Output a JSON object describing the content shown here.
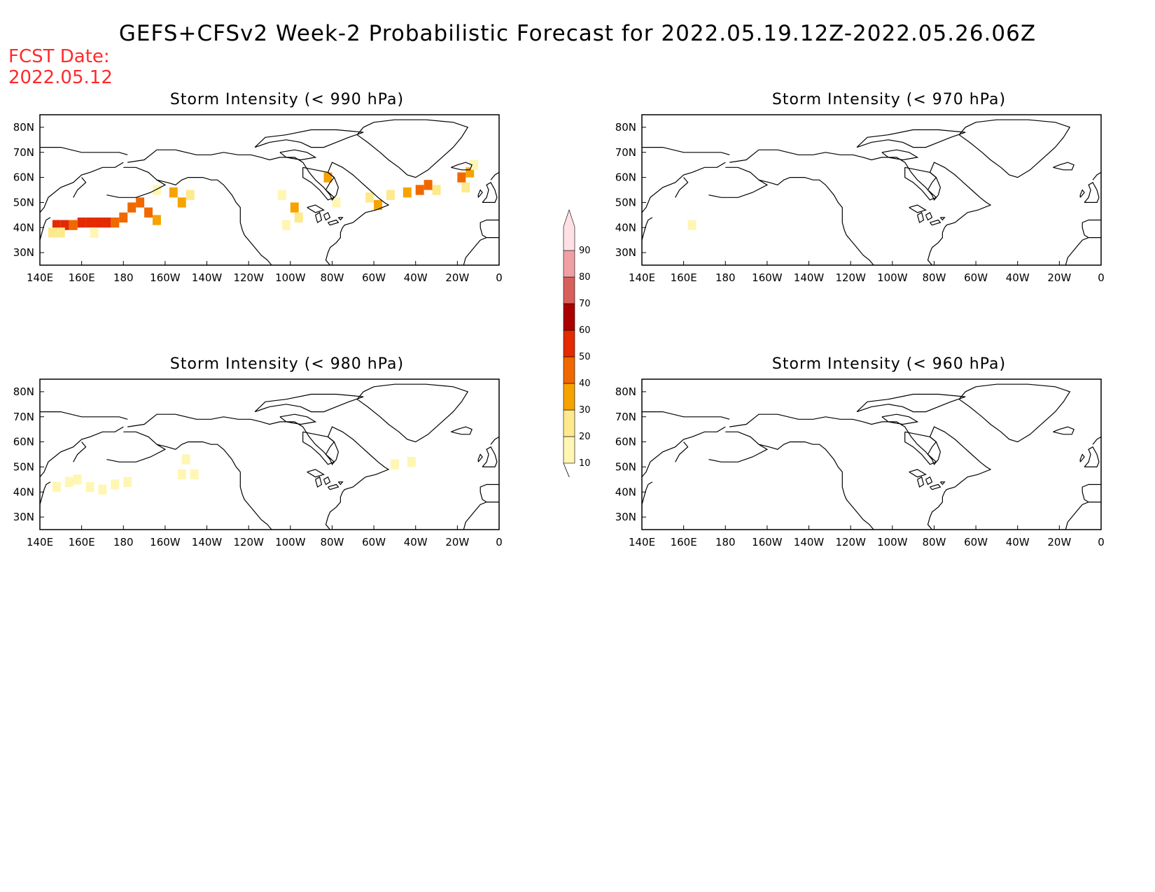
{
  "title": "GEFS+CFSv2 Week-2 Probabilistic Forecast for 2022.05.19.12Z-2022.05.26.06Z",
  "fcst_date": {
    "line1": "FCST Date:",
    "line2": "2022.05.12"
  },
  "axis": {
    "lon_labels": [
      "140E",
      "160E",
      "180",
      "160W",
      "140W",
      "120W",
      "100W",
      "80W",
      "60W",
      "40W",
      "20W",
      "0"
    ],
    "lat_labels": [
      "80N",
      "70N",
      "60N",
      "50N",
      "40N",
      "30N"
    ],
    "lon_range": [
      140,
      360
    ],
    "lat_range": [
      25,
      85
    ]
  },
  "panels": [
    {
      "id": "p1",
      "title": "Storm Intensity (< 990 hPa)",
      "cells": [
        {
          "lon": 160,
          "lat": 42,
          "v": 55
        },
        {
          "lon": 164,
          "lat": 42,
          "v": 55
        },
        {
          "lon": 168,
          "lat": 42,
          "v": 50
        },
        {
          "lon": 172,
          "lat": 42,
          "v": 50
        },
        {
          "lon": 176,
          "lat": 42,
          "v": 45
        },
        {
          "lon": 148,
          "lat": 41,
          "v": 50
        },
        {
          "lon": 152,
          "lat": 41,
          "v": 52
        },
        {
          "lon": 156,
          "lat": 41,
          "v": 45
        },
        {
          "lon": 180,
          "lat": 44,
          "v": 40
        },
        {
          "lon": 184,
          "lat": 48,
          "v": 42
        },
        {
          "lon": 188,
          "lat": 50,
          "v": 45
        },
        {
          "lon": 192,
          "lat": 46,
          "v": 40
        },
        {
          "lon": 196,
          "lat": 43,
          "v": 32
        },
        {
          "lon": 146,
          "lat": 38,
          "v": 25
        },
        {
          "lon": 150,
          "lat": 38,
          "v": 25
        },
        {
          "lon": 166,
          "lat": 38,
          "v": 15
        },
        {
          "lon": 196,
          "lat": 55,
          "v": 18
        },
        {
          "lon": 204,
          "lat": 54,
          "v": 35
        },
        {
          "lon": 208,
          "lat": 50,
          "v": 30
        },
        {
          "lon": 212,
          "lat": 53,
          "v": 25
        },
        {
          "lon": 256,
          "lat": 53,
          "v": 15
        },
        {
          "lon": 262,
          "lat": 48,
          "v": 30
        },
        {
          "lon": 264,
          "lat": 44,
          "v": 20
        },
        {
          "lon": 258,
          "lat": 41,
          "v": 15
        },
        {
          "lon": 278,
          "lat": 60,
          "v": 35
        },
        {
          "lon": 282,
          "lat": 50,
          "v": 15
        },
        {
          "lon": 298,
          "lat": 52,
          "v": 25
        },
        {
          "lon": 302,
          "lat": 49,
          "v": 32
        },
        {
          "lon": 308,
          "lat": 53,
          "v": 20
        },
        {
          "lon": 316,
          "lat": 54,
          "v": 30
        },
        {
          "lon": 322,
          "lat": 55,
          "v": 40
        },
        {
          "lon": 326,
          "lat": 57,
          "v": 45
        },
        {
          "lon": 330,
          "lat": 55,
          "v": 25
        },
        {
          "lon": 342,
          "lat": 60,
          "v": 40
        },
        {
          "lon": 346,
          "lat": 62,
          "v": 35
        },
        {
          "lon": 344,
          "lat": 56,
          "v": 20
        },
        {
          "lon": 348,
          "lat": 65,
          "v": 12
        }
      ]
    },
    {
      "id": "p2",
      "title": "Storm Intensity (< 970 hPa)",
      "cells": [
        {
          "lon": 164,
          "lat": 41,
          "v": 10
        }
      ]
    },
    {
      "id": "p3",
      "title": "Storm Intensity (< 980 hPa)",
      "cells": [
        {
          "lon": 148,
          "lat": 42,
          "v": 12
        },
        {
          "lon": 154,
          "lat": 44,
          "v": 12
        },
        {
          "lon": 158,
          "lat": 45,
          "v": 12
        },
        {
          "lon": 164,
          "lat": 42,
          "v": 12
        },
        {
          "lon": 170,
          "lat": 41,
          "v": 12
        },
        {
          "lon": 176,
          "lat": 43,
          "v": 12
        },
        {
          "lon": 182,
          "lat": 44,
          "v": 12
        },
        {
          "lon": 208,
          "lat": 47,
          "v": 15
        },
        {
          "lon": 214,
          "lat": 47,
          "v": 15
        },
        {
          "lon": 210,
          "lat": 53,
          "v": 12
        },
        {
          "lon": 318,
          "lat": 52,
          "v": 12
        },
        {
          "lon": 310,
          "lat": 51,
          "v": 12
        }
      ]
    },
    {
      "id": "p4",
      "title": "Storm Intensity (< 960 hPa)",
      "cells": []
    }
  ],
  "colorbar": {
    "labels": [
      "10",
      "20",
      "30",
      "40",
      "50",
      "60",
      "70",
      "80",
      "90"
    ],
    "colors": [
      "#fff6b4",
      "#fee98c",
      "#f6a300",
      "#f06800",
      "#e32a00",
      "#aa0000",
      "#d8605c",
      "#f0a0a4",
      "#ffe0e4"
    ]
  }
}
